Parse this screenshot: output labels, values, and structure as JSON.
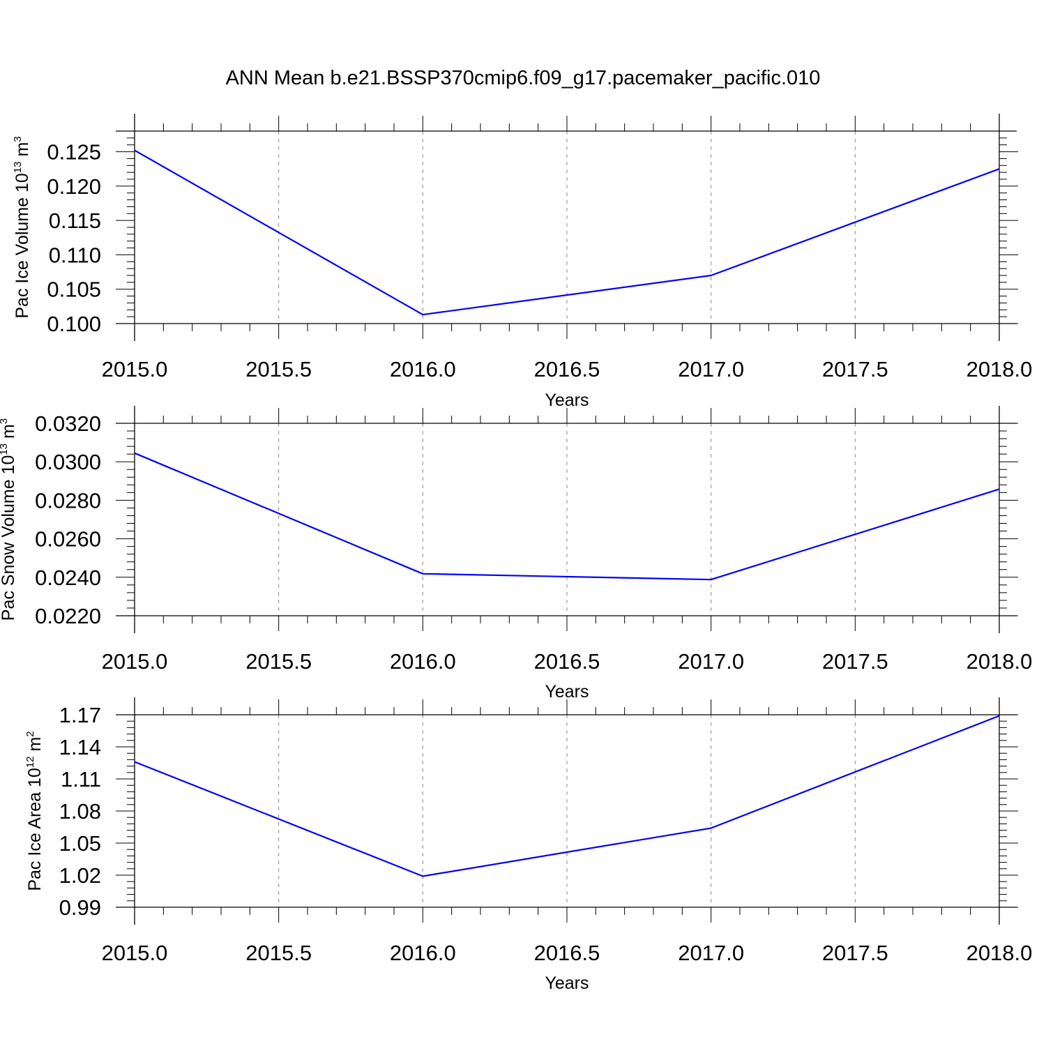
{
  "title": "ANN Mean b.e21.BSSP370cmip6.f09_g17.pacemaker_pacific.010",
  "colors": {
    "line": "#0000ff",
    "axis": "#000000",
    "grid": "#888888"
  },
  "chart_data": [
    {
      "type": "line",
      "xlabel": "Years",
      "ylabel": "Pac Ice Volume 10",
      "ylabel_exp": "13",
      "ylabel_unit": " m",
      "ylabel_unit_exp": "3",
      "x": [
        2015.0,
        2016.0,
        2017.0,
        2018.0
      ],
      "y": [
        0.1252,
        0.1013,
        0.107,
        0.1225
      ],
      "xlim": [
        2015.0,
        2018.0
      ],
      "ylim": [
        0.1,
        0.128
      ],
      "xticks": [
        "2015.0",
        "2015.5",
        "2016.0",
        "2016.5",
        "2017.0",
        "2017.5",
        "2018.0"
      ],
      "yticks": [
        "0.100",
        "0.105",
        "0.110",
        "0.115",
        "0.120",
        "0.125"
      ],
      "ytick_values": [
        0.1,
        0.105,
        0.11,
        0.115,
        0.12,
        0.125
      ],
      "grid": "vertical-dashed"
    },
    {
      "type": "line",
      "xlabel": "Years",
      "ylabel": "Pac Snow Volume 10",
      "ylabel_exp": "13",
      "ylabel_unit": " m",
      "ylabel_unit_exp": "3",
      "x": [
        2015.0,
        2016.0,
        2017.0,
        2018.0
      ],
      "y": [
        0.03045,
        0.02418,
        0.02388,
        0.02858
      ],
      "xlim": [
        2015.0,
        2018.0
      ],
      "ylim": [
        0.022,
        0.032
      ],
      "xticks": [
        "2015.0",
        "2015.5",
        "2016.0",
        "2016.5",
        "2017.0",
        "2017.5",
        "2018.0"
      ],
      "yticks": [
        "0.0220",
        "0.0240",
        "0.0260",
        "0.0280",
        "0.0300",
        "0.0320"
      ],
      "ytick_values": [
        0.022,
        0.024,
        0.026,
        0.028,
        0.03,
        0.032
      ],
      "grid": "vertical-dashed"
    },
    {
      "type": "line",
      "xlabel": "Years",
      "ylabel": "Pac Ice Area 10",
      "ylabel_exp": "12",
      "ylabel_unit": " m",
      "ylabel_unit_exp": "2",
      "x": [
        2015.0,
        2016.0,
        2017.0,
        2018.0
      ],
      "y": [
        1.126,
        1.019,
        1.064,
        1.169
      ],
      "xlim": [
        2015.0,
        2018.0
      ],
      "ylim": [
        0.99,
        1.17
      ],
      "xticks": [
        "2015.0",
        "2015.5",
        "2016.0",
        "2016.5",
        "2017.0",
        "2017.5",
        "2018.0"
      ],
      "yticks": [
        "0.99",
        "1.02",
        "1.05",
        "1.08",
        "1.11",
        "1.14",
        "1.17"
      ],
      "ytick_values": [
        0.99,
        1.02,
        1.05,
        1.08,
        1.11,
        1.14,
        1.17
      ],
      "grid": "vertical-dashed"
    }
  ]
}
